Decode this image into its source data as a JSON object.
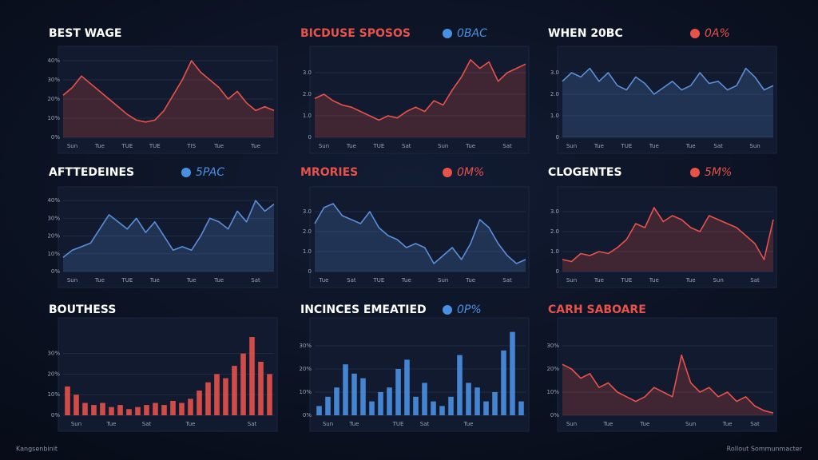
{
  "chart_data": [
    {
      "type": "area",
      "title": "BEST WAGE",
      "title_color": "#ffffff",
      "color": "#e8524a",
      "categories": [
        null,
        "Sun",
        null,
        null,
        "Tue",
        null,
        null,
        "TUE",
        null,
        null,
        "TUE",
        null,
        null,
        null,
        "TIS",
        null,
        null,
        "Tue",
        null,
        null,
        null,
        "Tue",
        null,
        null
      ],
      "values": [
        22,
        26,
        32,
        28,
        24,
        20,
        16,
        12,
        9,
        8,
        9,
        14,
        22,
        30,
        40,
        34,
        30,
        26,
        20,
        24,
        18,
        14,
        16,
        14
      ],
      "ylim": [
        0,
        45
      ],
      "yticks": [
        {
          "value": 0,
          "label": "0%"
        },
        {
          "value": 10,
          "label": "10%"
        },
        {
          "value": 20,
          "label": "20%"
        },
        {
          "value": 30,
          "label": "30%"
        },
        {
          "value": 40,
          "label": "40%"
        }
      ]
    },
    {
      "type": "area",
      "title": "BICDUSE SPOSOS",
      "title_color": "#e8524a",
      "color": "#e8524a",
      "badge": {
        "text": "0BAC",
        "color": "#4a90e2"
      },
      "categories": [
        null,
        "Sun",
        null,
        null,
        "Tue",
        null,
        null,
        "TUE",
        null,
        null,
        "Sat",
        null,
        null,
        null,
        "Sun",
        null,
        null,
        "Tue",
        null,
        null,
        null,
        "Sat",
        null,
        null
      ],
      "values": [
        1.8,
        2.0,
        1.7,
        1.5,
        1.4,
        1.2,
        1.0,
        0.8,
        1.0,
        0.9,
        1.2,
        1.4,
        1.2,
        1.7,
        1.5,
        2.2,
        2.8,
        3.6,
        3.2,
        3.5,
        2.6,
        3.0,
        3.2,
        3.4
      ],
      "ylim": [
        0,
        4
      ],
      "yticks": [
        0,
        {
          "value": 1,
          "label": "1.0"
        },
        {
          "value": 2,
          "label": "2.0"
        },
        {
          "value": 3,
          "label": "3.0"
        }
      ]
    },
    {
      "type": "area",
      "title": "WHEN 20BC",
      "title_color": "#ffffff",
      "color": "#5b8fd8",
      "badge": {
        "text": "0A%",
        "color": "#e8524a"
      },
      "categories": [
        null,
        "Sun",
        null,
        null,
        "Tue",
        null,
        null,
        "TUE",
        null,
        null,
        "Tue",
        null,
        null,
        null,
        "Tue",
        null,
        null,
        "Sat",
        null,
        null,
        null,
        "Sun",
        null,
        null
      ],
      "values": [
        2.6,
        3.0,
        2.8,
        3.2,
        2.6,
        3.0,
        2.4,
        2.2,
        2.8,
        2.5,
        2.0,
        2.3,
        2.6,
        2.2,
        2.4,
        3.0,
        2.5,
        2.6,
        2.2,
        2.4,
        3.2,
        2.8,
        2.2,
        2.4
      ],
      "ylim": [
        0,
        4
      ],
      "yticks": [
        0,
        {
          "value": 1,
          "label": "1.0"
        },
        {
          "value": 2,
          "label": "2.0"
        },
        {
          "value": 3,
          "label": "3.0"
        }
      ]
    },
    {
      "type": "area",
      "title": "AFTTEDEINES",
      "title_color": "#ffffff",
      "color": "#5b8fd8",
      "badge": {
        "text": "5PAC",
        "color": "#4a90e2"
      },
      "categories": [
        null,
        "Sun",
        null,
        null,
        "Tue",
        null,
        null,
        "TUE",
        null,
        null,
        "Tue",
        null,
        null,
        null,
        "Tue",
        null,
        null,
        "Tue",
        null,
        null,
        null,
        "Sat",
        null,
        null
      ],
      "values": [
        8,
        12,
        14,
        16,
        24,
        32,
        28,
        24,
        30,
        22,
        28,
        20,
        12,
        14,
        12,
        20,
        30,
        28,
        24,
        34,
        28,
        40,
        34,
        38
      ],
      "ylim": [
        0,
        45
      ],
      "yticks": [
        {
          "value": 0,
          "label": "0%"
        },
        {
          "value": 10,
          "label": "10%"
        },
        {
          "value": 20,
          "label": "20%"
        },
        {
          "value": 30,
          "label": "30%"
        },
        {
          "value": 40,
          "label": "40%"
        }
      ]
    },
    {
      "type": "area",
      "title": "MRORIES",
      "title_color": "#e8524a",
      "color": "#5b8fd8",
      "badge": {
        "text": "0M%",
        "color": "#e8524a"
      },
      "categories": [
        null,
        "Tue",
        null,
        null,
        "Sat",
        null,
        null,
        "TUE",
        null,
        null,
        "Tue",
        null,
        null,
        null,
        "Sun",
        null,
        null,
        "Tue",
        null,
        null,
        null,
        "Sat",
        null,
        null
      ],
      "values": [
        2.4,
        3.2,
        3.4,
        2.8,
        2.6,
        2.4,
        3.0,
        2.2,
        1.8,
        1.6,
        1.2,
        1.4,
        1.2,
        0.4,
        0.8,
        1.2,
        0.6,
        1.4,
        2.6,
        2.2,
        1.4,
        0.8,
        0.4,
        0.6
      ],
      "ylim": [
        0,
        4
      ],
      "yticks": [
        0,
        {
          "value": 1,
          "label": "1.0"
        },
        {
          "value": 2,
          "label": "2.0"
        },
        {
          "value": 3,
          "label": "3.0"
        }
      ]
    },
    {
      "type": "area",
      "title": "CLOGENTES",
      "title_color": "#ffffff",
      "color": "#e8524a",
      "badge": {
        "text": "5M%",
        "color": "#e8524a"
      },
      "categories": [
        null,
        "Sun",
        null,
        null,
        "Tue",
        null,
        null,
        "TUE",
        null,
        null,
        "Tue",
        null,
        null,
        null,
        "Tue",
        null,
        null,
        "Sun",
        null,
        null,
        null,
        "Sat",
        null,
        null
      ],
      "values": [
        0.6,
        0.5,
        0.9,
        0.8,
        1.0,
        0.9,
        1.2,
        1.6,
        2.4,
        2.2,
        3.2,
        2.5,
        2.8,
        2.6,
        2.2,
        2.0,
        2.8,
        2.6,
        2.4,
        2.2,
        1.8,
        1.4,
        0.6,
        2.6
      ],
      "ylim": [
        0,
        4
      ],
      "yticks": [
        0,
        {
          "value": 1,
          "label": "1.0"
        },
        {
          "value": 2,
          "label": "2.0"
        },
        {
          "value": 3,
          "label": "3.0"
        }
      ]
    },
    {
      "type": "bar",
      "title": "BOUTHESS",
      "title_color": "#ffffff",
      "color": "#e8524a",
      "categories": [
        null,
        "Sun",
        null,
        null,
        null,
        "Tue",
        null,
        null,
        null,
        "Sat",
        null,
        null,
        null,
        null,
        "Tue",
        null,
        null,
        null,
        null,
        null,
        null,
        "Sat",
        null,
        null
      ],
      "values": [
        14,
        10,
        6,
        5,
        6,
        4,
        5,
        3,
        4,
        5,
        6,
        5,
        7,
        6,
        8,
        12,
        16,
        20,
        18,
        24,
        30,
        38,
        26,
        20
      ],
      "ylim": [
        0,
        45
      ],
      "yticks": [
        {
          "value": 0,
          "label": "0%"
        },
        {
          "value": 10,
          "label": "10%"
        },
        {
          "value": 20,
          "label": "20%"
        },
        {
          "value": 30,
          "label": "30%"
        }
      ]
    },
    {
      "type": "bar",
      "title": "INCINCES EMEATIED",
      "title_color": "#ffffff",
      "color": "#4a90e2",
      "badge": {
        "text": "0P%",
        "color": "#4a90e2"
      },
      "categories": [
        null,
        "Sun",
        null,
        null,
        "Tue",
        null,
        null,
        null,
        null,
        "TUE",
        null,
        null,
        "Sat",
        null,
        null,
        null,
        null,
        "Tue",
        null,
        null,
        null,
        null,
        null,
        null
      ],
      "values": [
        4,
        8,
        12,
        22,
        18,
        16,
        6,
        10,
        12,
        20,
        24,
        8,
        14,
        6,
        4,
        8,
        26,
        14,
        12,
        6,
        10,
        28,
        36,
        6
      ],
      "ylim": [
        0,
        40
      ],
      "yticks": [
        {
          "value": 0,
          "label": "0%"
        },
        {
          "value": 10,
          "label": "10%"
        },
        {
          "value": 20,
          "label": "20%"
        },
        {
          "value": 30,
          "label": "30%"
        }
      ]
    },
    {
      "type": "area",
      "title": "CARH SABOARE",
      "title_color": "#e8524a",
      "color": "#e8524a",
      "categories": [
        null,
        "Sun",
        null,
        null,
        null,
        "Tue",
        null,
        null,
        null,
        "Tue",
        null,
        null,
        null,
        null,
        "Sun",
        null,
        null,
        null,
        "Tue",
        null,
        null,
        "Sat",
        null,
        null
      ],
      "values": [
        22,
        20,
        16,
        18,
        12,
        14,
        10,
        8,
        6,
        8,
        12,
        10,
        8,
        26,
        14,
        10,
        12,
        8,
        10,
        6,
        8,
        4,
        2,
        1
      ],
      "ylim": [
        0,
        40
      ],
      "yticks": [
        {
          "value": 0,
          "label": "0%"
        },
        {
          "value": 10,
          "label": "10%"
        },
        {
          "value": 20,
          "label": "20%"
        },
        {
          "value": 30,
          "label": "30%"
        }
      ]
    }
  ],
  "footer": {
    "left": "Kangsenbinit",
    "right": "Rollout Sommunmacter"
  }
}
